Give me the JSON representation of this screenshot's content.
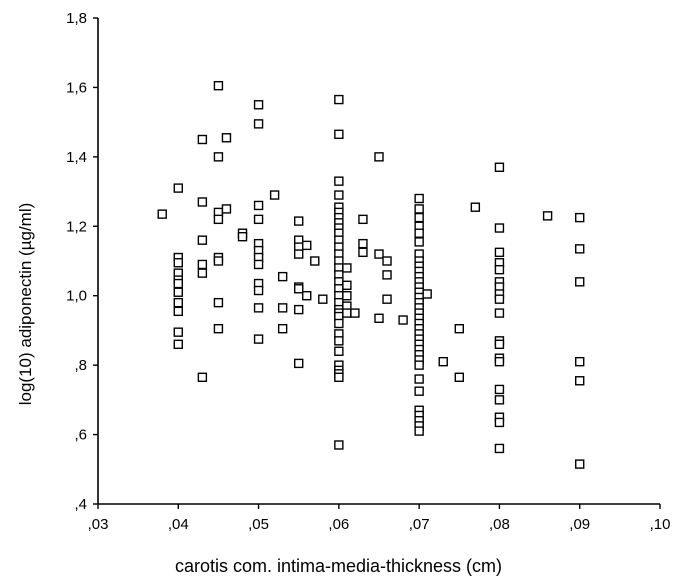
{
  "chart_data": {
    "type": "scatter",
    "title": "",
    "xlabel": "carotis com. intima-media-thickness (cm)",
    "ylabel": "log(10) adiponectin (µg/ml)",
    "xlim": [
      0.03,
      0.1
    ],
    "ylim": [
      0.4,
      1.8
    ],
    "x_ticks": [
      {
        "value": 0.03,
        "label": ",03"
      },
      {
        "value": 0.04,
        "label": ",04"
      },
      {
        "value": 0.05,
        "label": ",05"
      },
      {
        "value": 0.06,
        "label": ",06"
      },
      {
        "value": 0.07,
        "label": ",07"
      },
      {
        "value": 0.08,
        "label": ",08"
      },
      {
        "value": 0.09,
        "label": ",09"
      },
      {
        "value": 0.1,
        "label": ",10"
      }
    ],
    "y_ticks": [
      {
        "value": 0.4,
        "label": ",4"
      },
      {
        "value": 0.6,
        "label": ",6"
      },
      {
        "value": 0.8,
        "label": ",8"
      },
      {
        "value": 1.0,
        "label": "1,0"
      },
      {
        "value": 1.2,
        "label": "1,2"
      },
      {
        "value": 1.4,
        "label": "1,4"
      },
      {
        "value": 1.6,
        "label": "1,6"
      },
      {
        "value": 1.8,
        "label": "1,8"
      }
    ],
    "grid": false,
    "marker": "open-square",
    "points": [
      [
        0.038,
        1.235
      ],
      [
        0.04,
        1.31
      ],
      [
        0.04,
        1.11
      ],
      [
        0.04,
        1.095
      ],
      [
        0.04,
        1.065
      ],
      [
        0.04,
        1.045
      ],
      [
        0.04,
        1.035
      ],
      [
        0.04,
        1.01
      ],
      [
        0.04,
        0.98
      ],
      [
        0.04,
        0.955
      ],
      [
        0.04,
        0.895
      ],
      [
        0.04,
        0.86
      ],
      [
        0.043,
        1.45
      ],
      [
        0.043,
        1.27
      ],
      [
        0.043,
        1.16
      ],
      [
        0.043,
        1.09
      ],
      [
        0.043,
        1.065
      ],
      [
        0.043,
        0.765
      ],
      [
        0.045,
        1.605
      ],
      [
        0.045,
        1.4
      ],
      [
        0.045,
        1.24
      ],
      [
        0.045,
        1.22
      ],
      [
        0.045,
        1.11
      ],
      [
        0.045,
        1.1
      ],
      [
        0.045,
        0.98
      ],
      [
        0.045,
        0.905
      ],
      [
        0.046,
        1.455
      ],
      [
        0.046,
        1.25
      ],
      [
        0.048,
        1.18
      ],
      [
        0.048,
        1.17
      ],
      [
        0.05,
        1.55
      ],
      [
        0.05,
        1.495
      ],
      [
        0.05,
        1.26
      ],
      [
        0.05,
        1.22
      ],
      [
        0.05,
        1.15
      ],
      [
        0.05,
        1.13
      ],
      [
        0.05,
        1.11
      ],
      [
        0.05,
        1.09
      ],
      [
        0.05,
        1.035
      ],
      [
        0.05,
        1.015
      ],
      [
        0.05,
        0.965
      ],
      [
        0.05,
        0.875
      ],
      [
        0.052,
        1.29
      ],
      [
        0.053,
        1.055
      ],
      [
        0.053,
        0.965
      ],
      [
        0.053,
        0.905
      ],
      [
        0.055,
        1.215
      ],
      [
        0.055,
        1.16
      ],
      [
        0.055,
        1.14
      ],
      [
        0.055,
        1.12
      ],
      [
        0.055,
        1.025
      ],
      [
        0.055,
        1.02
      ],
      [
        0.055,
        0.96
      ],
      [
        0.055,
        0.805
      ],
      [
        0.056,
        1.145
      ],
      [
        0.056,
        1.0
      ],
      [
        0.057,
        1.1
      ],
      [
        0.058,
        0.99
      ],
      [
        0.06,
        1.565
      ],
      [
        0.06,
        1.465
      ],
      [
        0.06,
        1.33
      ],
      [
        0.06,
        1.29
      ],
      [
        0.06,
        1.255
      ],
      [
        0.06,
        1.24
      ],
      [
        0.06,
        1.225
      ],
      [
        0.06,
        1.21
      ],
      [
        0.06,
        1.195
      ],
      [
        0.06,
        1.18
      ],
      [
        0.06,
        1.16
      ],
      [
        0.06,
        1.14
      ],
      [
        0.06,
        1.12
      ],
      [
        0.06,
        1.1
      ],
      [
        0.06,
        1.08
      ],
      [
        0.06,
        1.06
      ],
      [
        0.06,
        1.04
      ],
      [
        0.06,
        1.02
      ],
      [
        0.06,
        1.0
      ],
      [
        0.06,
        0.98
      ],
      [
        0.06,
        0.96
      ],
      [
        0.06,
        0.95
      ],
      [
        0.06,
        0.94
      ],
      [
        0.06,
        0.92
      ],
      [
        0.06,
        0.89
      ],
      [
        0.06,
        0.87
      ],
      [
        0.06,
        0.84
      ],
      [
        0.06,
        0.8
      ],
      [
        0.06,
        0.785
      ],
      [
        0.06,
        0.775
      ],
      [
        0.06,
        0.765
      ],
      [
        0.06,
        0.57
      ],
      [
        0.061,
        1.08
      ],
      [
        0.061,
        1.03
      ],
      [
        0.061,
        1.0
      ],
      [
        0.061,
        0.97
      ],
      [
        0.061,
        0.95
      ],
      [
        0.062,
        0.95
      ],
      [
        0.063,
        1.22
      ],
      [
        0.063,
        1.15
      ],
      [
        0.063,
        1.125
      ],
      [
        0.065,
        1.4
      ],
      [
        0.065,
        1.12
      ],
      [
        0.065,
        0.935
      ],
      [
        0.066,
        1.1
      ],
      [
        0.066,
        1.06
      ],
      [
        0.066,
        0.99
      ],
      [
        0.068,
        0.93
      ],
      [
        0.07,
        1.28
      ],
      [
        0.07,
        1.25
      ],
      [
        0.07,
        1.225
      ],
      [
        0.07,
        1.2
      ],
      [
        0.07,
        1.18
      ],
      [
        0.07,
        1.155
      ],
      [
        0.07,
        1.12
      ],
      [
        0.07,
        1.1
      ],
      [
        0.07,
        1.085
      ],
      [
        0.07,
        1.07
      ],
      [
        0.07,
        1.055
      ],
      [
        0.07,
        1.04
      ],
      [
        0.07,
        1.025
      ],
      [
        0.07,
        1.01
      ],
      [
        0.07,
        0.995
      ],
      [
        0.07,
        0.98
      ],
      [
        0.07,
        0.965
      ],
      [
        0.07,
        0.95
      ],
      [
        0.07,
        0.935
      ],
      [
        0.07,
        0.92
      ],
      [
        0.07,
        0.905
      ],
      [
        0.07,
        0.89
      ],
      [
        0.07,
        0.875
      ],
      [
        0.07,
        0.86
      ],
      [
        0.07,
        0.845
      ],
      [
        0.07,
        0.83
      ],
      [
        0.07,
        0.815
      ],
      [
        0.07,
        0.8
      ],
      [
        0.07,
        0.76
      ],
      [
        0.07,
        0.725
      ],
      [
        0.07,
        0.67
      ],
      [
        0.07,
        0.655
      ],
      [
        0.07,
        0.64
      ],
      [
        0.07,
        0.625
      ],
      [
        0.07,
        0.61
      ],
      [
        0.071,
        1.005
      ],
      [
        0.073,
        0.81
      ],
      [
        0.075,
        0.905
      ],
      [
        0.075,
        0.765
      ],
      [
        0.077,
        1.255
      ],
      [
        0.08,
        1.37
      ],
      [
        0.08,
        1.195
      ],
      [
        0.08,
        1.125
      ],
      [
        0.08,
        1.095
      ],
      [
        0.08,
        1.075
      ],
      [
        0.08,
        1.04
      ],
      [
        0.08,
        1.025
      ],
      [
        0.08,
        1.005
      ],
      [
        0.08,
        0.99
      ],
      [
        0.08,
        0.95
      ],
      [
        0.08,
        0.87
      ],
      [
        0.08,
        0.86
      ],
      [
        0.08,
        0.82
      ],
      [
        0.08,
        0.81
      ],
      [
        0.08,
        0.73
      ],
      [
        0.08,
        0.7
      ],
      [
        0.08,
        0.65
      ],
      [
        0.08,
        0.635
      ],
      [
        0.08,
        0.56
      ],
      [
        0.086,
        1.23
      ],
      [
        0.09,
        1.225
      ],
      [
        0.09,
        1.135
      ],
      [
        0.09,
        1.04
      ],
      [
        0.09,
        0.81
      ],
      [
        0.09,
        0.755
      ],
      [
        0.09,
        0.515
      ]
    ]
  }
}
